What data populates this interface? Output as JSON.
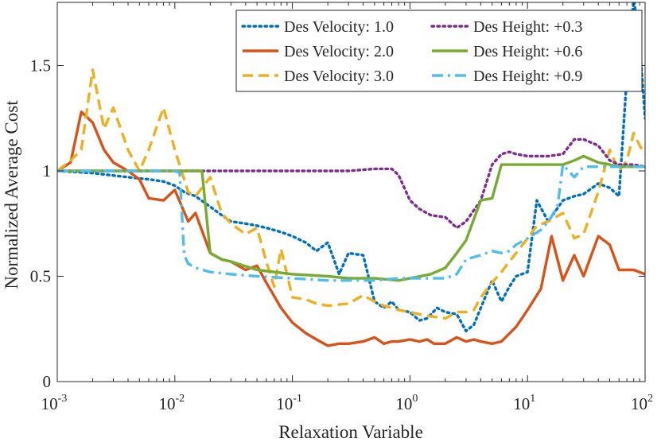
{
  "chart_data": {
    "type": "line",
    "title": "",
    "xlabel": "Relaxation Variable",
    "ylabel": "Normalized Average Cost",
    "xscale": "log",
    "xlim": [
      0.001,
      100
    ],
    "ylim": [
      0,
      1.8
    ],
    "grid": false,
    "legend_position": "top-right",
    "x_ticks": [
      {
        "base": "10",
        "exp": "-3",
        "value": 0.001
      },
      {
        "base": "10",
        "exp": "-2",
        "value": 0.01
      },
      {
        "base": "10",
        "exp": "-1",
        "value": 0.1
      },
      {
        "base": "10",
        "exp": "0",
        "value": 1
      },
      {
        "base": "10",
        "exp": "1",
        "value": 10
      },
      {
        "base": "10",
        "exp": "2",
        "value": 100
      }
    ],
    "y_ticks": [
      {
        "label": "0",
        "value": 0
      },
      {
        "label": "0.5",
        "value": 0.5
      },
      {
        "label": "1",
        "value": 1
      },
      {
        "label": "1.5",
        "value": 1.5
      }
    ],
    "series": [
      {
        "name": "Des Velocity: 1.0",
        "color": "#0072BD",
        "style": "dotted",
        "points": [
          [
            0.001,
            1.0
          ],
          [
            0.002,
            0.99
          ],
          [
            0.004,
            0.97
          ],
          [
            0.006,
            0.96
          ],
          [
            0.008,
            0.95
          ],
          [
            0.01,
            0.93
          ],
          [
            0.012,
            0.9
          ],
          [
            0.015,
            0.88
          ],
          [
            0.02,
            0.83
          ],
          [
            0.025,
            0.79
          ],
          [
            0.03,
            0.76
          ],
          [
            0.04,
            0.75
          ],
          [
            0.05,
            0.74
          ],
          [
            0.06,
            0.73
          ],
          [
            0.08,
            0.71
          ],
          [
            0.1,
            0.69
          ],
          [
            0.13,
            0.66
          ],
          [
            0.16,
            0.62
          ],
          [
            0.2,
            0.66
          ],
          [
            0.25,
            0.51
          ],
          [
            0.3,
            0.61
          ],
          [
            0.4,
            0.6
          ],
          [
            0.5,
            0.38
          ],
          [
            0.6,
            0.35
          ],
          [
            0.7,
            0.38
          ],
          [
            0.8,
            0.34
          ],
          [
            1.0,
            0.33
          ],
          [
            1.2,
            0.29
          ],
          [
            1.4,
            0.3
          ],
          [
            1.7,
            0.35
          ],
          [
            2.0,
            0.33
          ],
          [
            2.5,
            0.32
          ],
          [
            3.0,
            0.24
          ],
          [
            3.5,
            0.27
          ],
          [
            4.0,
            0.35
          ],
          [
            5.0,
            0.48
          ],
          [
            6.0,
            0.38
          ],
          [
            7.0,
            0.45
          ],
          [
            8.0,
            0.5
          ],
          [
            10.0,
            0.52
          ],
          [
            12.0,
            0.86
          ],
          [
            15.0,
            0.76
          ],
          [
            20.0,
            0.86
          ],
          [
            25.0,
            0.88
          ],
          [
            30.0,
            0.89
          ],
          [
            40.0,
            0.94
          ],
          [
            50.0,
            0.92
          ],
          [
            60.0,
            0.88
          ],
          [
            70.0,
            1.45
          ],
          [
            80.0,
            1.82
          ],
          [
            90.0,
            1.6
          ],
          [
            100.0,
            1.25
          ]
        ]
      },
      {
        "name": "Des Velocity: 2.0",
        "color": "#D95319",
        "style": "solid",
        "points": [
          [
            0.001,
            1.0
          ],
          [
            0.0013,
            1.04
          ],
          [
            0.0016,
            1.28
          ],
          [
            0.002,
            1.23
          ],
          [
            0.0025,
            1.1
          ],
          [
            0.003,
            1.04
          ],
          [
            0.004,
            1.0
          ],
          [
            0.005,
            0.96
          ],
          [
            0.006,
            0.87
          ],
          [
            0.008,
            0.86
          ],
          [
            0.01,
            0.91
          ],
          [
            0.013,
            0.76
          ],
          [
            0.015,
            0.8
          ],
          [
            0.02,
            0.61
          ],
          [
            0.025,
            0.58
          ],
          [
            0.03,
            0.57
          ],
          [
            0.04,
            0.53
          ],
          [
            0.05,
            0.55
          ],
          [
            0.06,
            0.47
          ],
          [
            0.08,
            0.35
          ],
          [
            0.1,
            0.28
          ],
          [
            0.13,
            0.23
          ],
          [
            0.16,
            0.2
          ],
          [
            0.2,
            0.17
          ],
          [
            0.25,
            0.18
          ],
          [
            0.3,
            0.18
          ],
          [
            0.4,
            0.19
          ],
          [
            0.5,
            0.21
          ],
          [
            0.6,
            0.18
          ],
          [
            0.7,
            0.19
          ],
          [
            0.8,
            0.19
          ],
          [
            1.0,
            0.2
          ],
          [
            1.2,
            0.19
          ],
          [
            1.4,
            0.2
          ],
          [
            1.6,
            0.18
          ],
          [
            2.0,
            0.18
          ],
          [
            2.5,
            0.21
          ],
          [
            3.0,
            0.19
          ],
          [
            3.5,
            0.2
          ],
          [
            4.0,
            0.19
          ],
          [
            5.0,
            0.18
          ],
          [
            6.0,
            0.19
          ],
          [
            8.0,
            0.26
          ],
          [
            10.0,
            0.34
          ],
          [
            13.0,
            0.44
          ],
          [
            16.0,
            0.69
          ],
          [
            20.0,
            0.48
          ],
          [
            25.0,
            0.6
          ],
          [
            30.0,
            0.5
          ],
          [
            40.0,
            0.69
          ],
          [
            50.0,
            0.65
          ],
          [
            60.0,
            0.53
          ],
          [
            80.0,
            0.53
          ],
          [
            100.0,
            0.51
          ]
        ]
      },
      {
        "name": "Des Velocity: 3.0",
        "color": "#EDB120",
        "style": "dashed",
        "points": [
          [
            0.001,
            1.0
          ],
          [
            0.0013,
            1.05
          ],
          [
            0.0016,
            1.1
          ],
          [
            0.002,
            1.48
          ],
          [
            0.0025,
            1.2
          ],
          [
            0.003,
            1.3
          ],
          [
            0.004,
            1.1
          ],
          [
            0.005,
            1.0
          ],
          [
            0.006,
            1.1
          ],
          [
            0.008,
            1.3
          ],
          [
            0.01,
            1.1
          ],
          [
            0.013,
            0.9
          ],
          [
            0.015,
            0.88
          ],
          [
            0.02,
            0.97
          ],
          [
            0.025,
            0.8
          ],
          [
            0.03,
            0.75
          ],
          [
            0.04,
            0.7
          ],
          [
            0.05,
            0.73
          ],
          [
            0.06,
            0.57
          ],
          [
            0.07,
            0.45
          ],
          [
            0.08,
            0.63
          ],
          [
            0.1,
            0.4
          ],
          [
            0.13,
            0.39
          ],
          [
            0.16,
            0.37
          ],
          [
            0.2,
            0.36
          ],
          [
            0.3,
            0.37
          ],
          [
            0.4,
            0.41
          ],
          [
            0.5,
            0.38
          ],
          [
            0.6,
            0.36
          ],
          [
            0.7,
            0.35
          ],
          [
            0.8,
            0.34
          ],
          [
            1.0,
            0.33
          ],
          [
            1.2,
            0.32
          ],
          [
            1.5,
            0.31
          ],
          [
            2.0,
            0.3
          ],
          [
            2.5,
            0.33
          ],
          [
            3.0,
            0.33
          ],
          [
            3.5,
            0.34
          ],
          [
            4.0,
            0.4
          ],
          [
            5.0,
            0.47
          ],
          [
            6.0,
            0.52
          ],
          [
            7.0,
            0.57
          ],
          [
            8.0,
            0.61
          ],
          [
            10.0,
            0.68
          ],
          [
            12.0,
            0.74
          ],
          [
            15.0,
            0.76
          ],
          [
            20.0,
            0.8
          ],
          [
            25.0,
            0.68
          ],
          [
            30.0,
            0.7
          ],
          [
            40.0,
            0.9
          ],
          [
            50.0,
            1.1
          ],
          [
            60.0,
            1.0
          ],
          [
            70.0,
            1.05
          ],
          [
            80.0,
            1.18
          ],
          [
            90.0,
            1.12
          ],
          [
            100.0,
            1.08
          ]
        ]
      },
      {
        "name": "Des Height: +0.3",
        "color": "#7E2F8E",
        "style": "dotted",
        "points": [
          [
            0.001,
            1.0
          ],
          [
            0.01,
            1.0
          ],
          [
            0.05,
            1.0
          ],
          [
            0.1,
            1.0
          ],
          [
            0.3,
            1.0
          ],
          [
            0.5,
            1.01
          ],
          [
            0.7,
            1.01
          ],
          [
            0.8,
            0.98
          ],
          [
            1.0,
            0.86
          ],
          [
            1.2,
            0.82
          ],
          [
            1.5,
            0.79
          ],
          [
            2.0,
            0.78
          ],
          [
            2.5,
            0.73
          ],
          [
            3.0,
            0.76
          ],
          [
            4.0,
            0.86
          ],
          [
            5.0,
            1.03
          ],
          [
            6.0,
            1.08
          ],
          [
            7.0,
            1.09
          ],
          [
            8.0,
            1.08
          ],
          [
            10.0,
            1.07
          ],
          [
            15.0,
            1.07
          ],
          [
            20.0,
            1.08
          ],
          [
            25.0,
            1.15
          ],
          [
            30.0,
            1.15
          ],
          [
            40.0,
            1.12
          ],
          [
            50.0,
            1.05
          ],
          [
            60.0,
            1.03
          ],
          [
            80.0,
            1.03
          ],
          [
            100.0,
            1.02
          ]
        ]
      },
      {
        "name": "Des Height: +0.6",
        "color": "#77AC30",
        "style": "solid",
        "points": [
          [
            0.001,
            1.0
          ],
          [
            0.005,
            1.0
          ],
          [
            0.01,
            1.0
          ],
          [
            0.015,
            1.0
          ],
          [
            0.017,
            1.0
          ],
          [
            0.02,
            0.61
          ],
          [
            0.025,
            0.58
          ],
          [
            0.03,
            0.57
          ],
          [
            0.05,
            0.53
          ],
          [
            0.1,
            0.51
          ],
          [
            0.2,
            0.5
          ],
          [
            0.3,
            0.49
          ],
          [
            0.5,
            0.49
          ],
          [
            0.8,
            0.48
          ],
          [
            1.0,
            0.49
          ],
          [
            1.5,
            0.51
          ],
          [
            2.0,
            0.54
          ],
          [
            2.5,
            0.61
          ],
          [
            3.0,
            0.67
          ],
          [
            4.0,
            0.86
          ],
          [
            5.0,
            0.87
          ],
          [
            6.0,
            1.03
          ],
          [
            7.0,
            1.03
          ],
          [
            10.0,
            1.03
          ],
          [
            20.0,
            1.03
          ],
          [
            25.0,
            1.05
          ],
          [
            30.0,
            1.07
          ],
          [
            40.0,
            1.04
          ],
          [
            50.0,
            1.03
          ],
          [
            60.0,
            1.02
          ],
          [
            100.0,
            1.02
          ]
        ]
      },
      {
        "name": "Des Height: +0.9",
        "color": "#4DBEEE",
        "style": "dashdot",
        "points": [
          [
            0.001,
            1.0
          ],
          [
            0.005,
            1.0
          ],
          [
            0.01,
            1.0
          ],
          [
            0.011,
            0.99
          ],
          [
            0.012,
            0.6
          ],
          [
            0.013,
            0.56
          ],
          [
            0.015,
            0.54
          ],
          [
            0.02,
            0.52
          ],
          [
            0.03,
            0.51
          ],
          [
            0.05,
            0.5
          ],
          [
            0.1,
            0.49
          ],
          [
            0.2,
            0.48
          ],
          [
            0.3,
            0.48
          ],
          [
            0.5,
            0.48
          ],
          [
            0.8,
            0.49
          ],
          [
            1.0,
            0.49
          ],
          [
            1.5,
            0.49
          ],
          [
            2.0,
            0.49
          ],
          [
            2.5,
            0.51
          ],
          [
            3.0,
            0.58
          ],
          [
            4.0,
            0.6
          ],
          [
            5.0,
            0.62
          ],
          [
            6.0,
            0.61
          ],
          [
            7.0,
            0.62
          ],
          [
            8.0,
            0.65
          ],
          [
            10.0,
            0.68
          ],
          [
            13.0,
            0.72
          ],
          [
            15.0,
            0.76
          ],
          [
            18.0,
            0.83
          ],
          [
            20.0,
            1.03
          ],
          [
            25.0,
            0.97
          ],
          [
            30.0,
            1.02
          ],
          [
            40.0,
            1.02
          ],
          [
            60.0,
            1.02
          ],
          [
            100.0,
            1.02
          ]
        ]
      }
    ]
  }
}
